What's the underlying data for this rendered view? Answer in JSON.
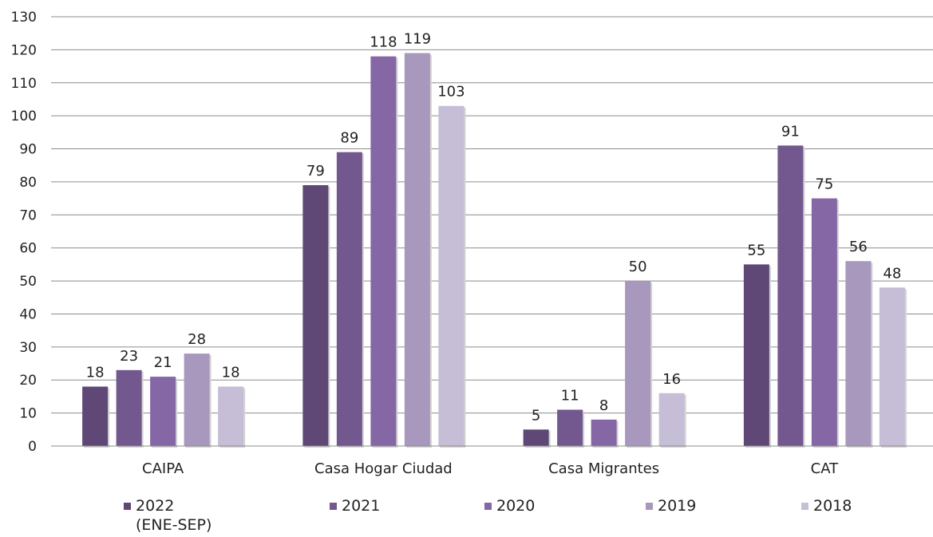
{
  "chart_data": {
    "type": "bar",
    "title": "",
    "xlabel": "",
    "ylabel": "",
    "ylim": [
      0,
      130
    ],
    "ytick_step": 10,
    "grid": true,
    "legend_position": "bottom",
    "categories": [
      "CAIPA",
      "Casa Hogar Ciudad",
      "Casa Migrantes",
      "CAT"
    ],
    "series": [
      {
        "name": "2022\n(ENE-SEP)",
        "color": "#5f4876",
        "values": [
          18,
          79,
          5,
          55
        ]
      },
      {
        "name": "2021",
        "color": "#73578f",
        "values": [
          23,
          89,
          11,
          91
        ]
      },
      {
        "name": "2020",
        "color": "#8667a6",
        "values": [
          21,
          118,
          8,
          75
        ]
      },
      {
        "name": "2019",
        "color": "#a898bd",
        "values": [
          28,
          119,
          50,
          56
        ]
      },
      {
        "name": "2018",
        "color": "#c6bdd6",
        "values": [
          18,
          103,
          16,
          48
        ]
      }
    ]
  }
}
